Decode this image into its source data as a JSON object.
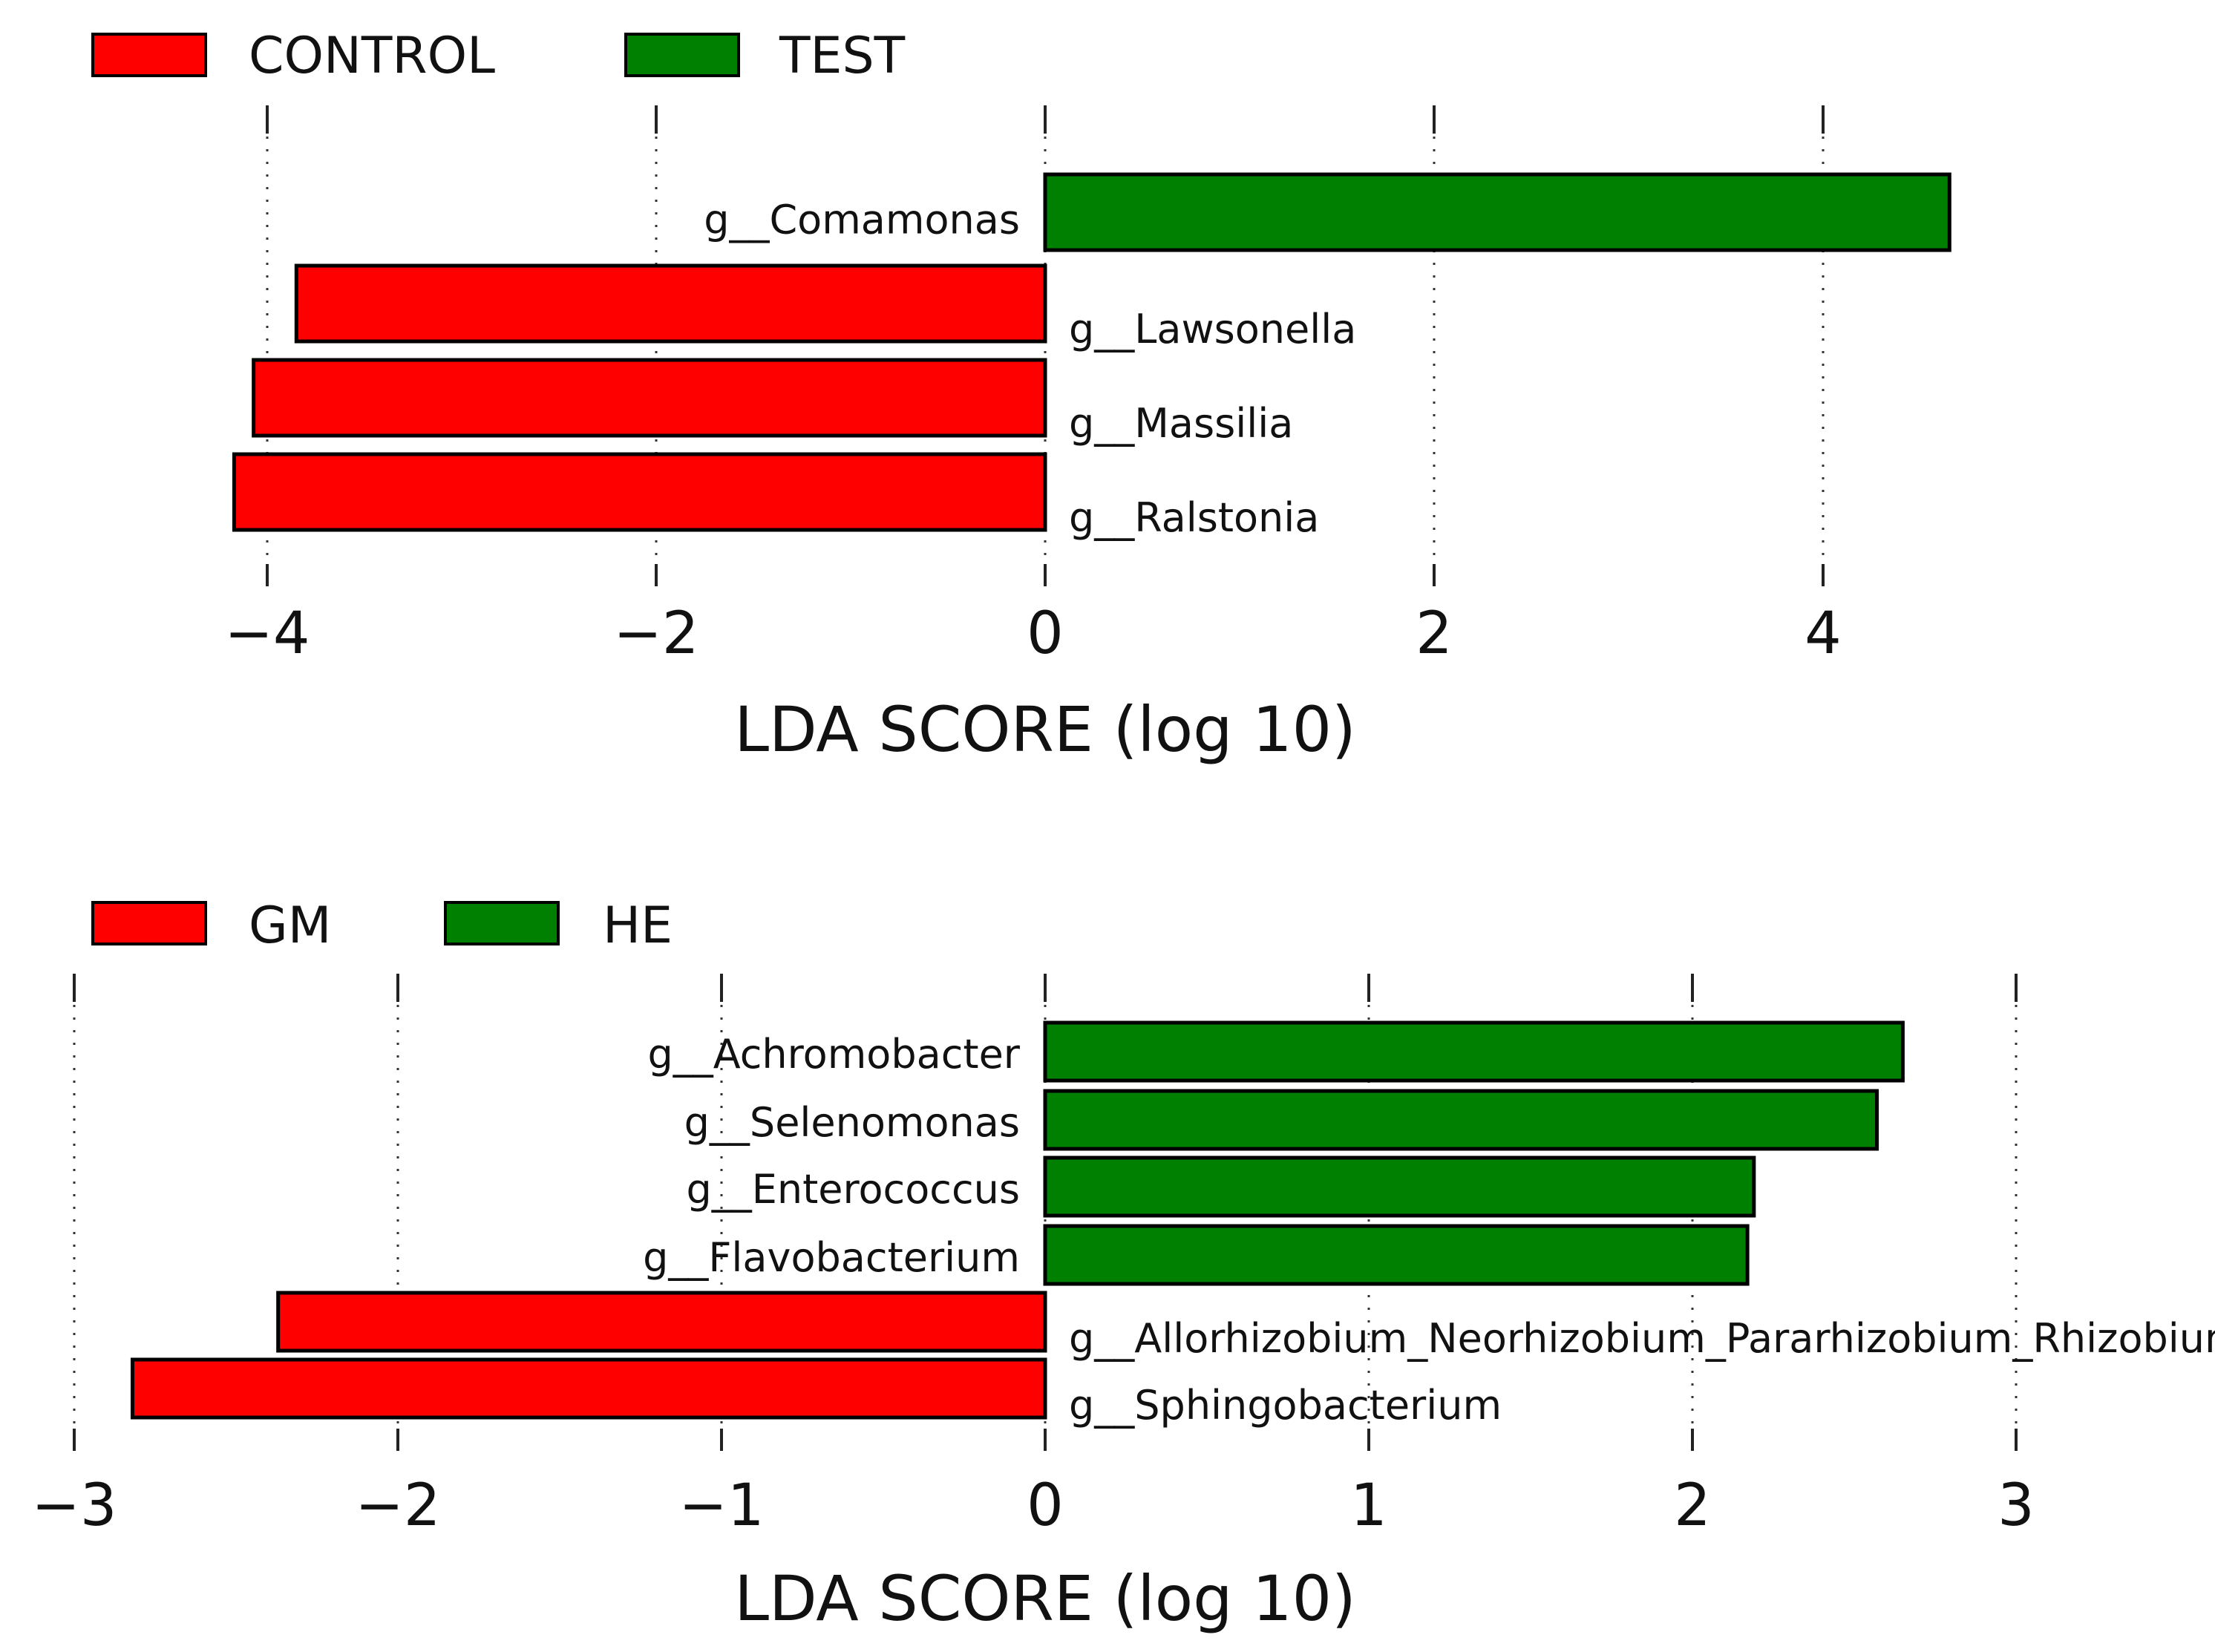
{
  "chart_data": [
    {
      "type": "bar",
      "orientation": "horizontal",
      "title": "",
      "xlabel": "LDA SCORE (log 10)",
      "ylabel": "",
      "xlim": [
        -4.2,
        4.8
      ],
      "xticks": [
        -4,
        -2,
        0,
        2,
        4
      ],
      "xtick_labels": [
        "−4",
        "−2",
        "0",
        "2",
        "4"
      ],
      "grid": "vertical dotted",
      "legend_position": "top-left",
      "legend": [
        {
          "label": "CONTROL",
          "color": "#ff0000"
        },
        {
          "label": "TEST",
          "color": "#008000"
        }
      ],
      "bars": [
        {
          "label": "g__Comamonas",
          "value": 4.65,
          "group": "TEST"
        },
        {
          "label": "g__Lawsonella",
          "value": -3.85,
          "group": "CONTROL"
        },
        {
          "label": "g__Massilia",
          "value": -4.07,
          "group": "CONTROL"
        },
        {
          "label": "g__Ralstonia",
          "value": -4.17,
          "group": "CONTROL"
        }
      ]
    },
    {
      "type": "bar",
      "orientation": "horizontal",
      "title": "",
      "xlabel": "LDA SCORE (log 10)",
      "ylabel": "",
      "xlim": [
        -3.0,
        3.0
      ],
      "xticks": [
        -3,
        -2,
        -1,
        0,
        1,
        2,
        3
      ],
      "xtick_labels": [
        "−3",
        "−2",
        "−1",
        "0",
        "1",
        "2",
        "3"
      ],
      "grid": "vertical dotted",
      "legend_position": "top-left",
      "legend": [
        {
          "label": "GM",
          "color": "#ff0000"
        },
        {
          "label": "HE",
          "color": "#008000"
        }
      ],
      "bars": [
        {
          "label": "g__Achromobacter",
          "value": 2.65,
          "group": "HE"
        },
        {
          "label": "g__Selenomonas",
          "value": 2.57,
          "group": "HE"
        },
        {
          "label": "g__Enterococcus",
          "value": 2.19,
          "group": "HE"
        },
        {
          "label": "g__Flavobacterium",
          "value": 2.17,
          "group": "HE"
        },
        {
          "label": "g__Allorhizobium_Neorhizobium_Pararhizobium_Rhizobium",
          "value": -2.37,
          "group": "GM"
        },
        {
          "label": "g__Sphingobacterium",
          "value": -2.82,
          "group": "GM"
        }
      ]
    }
  ]
}
